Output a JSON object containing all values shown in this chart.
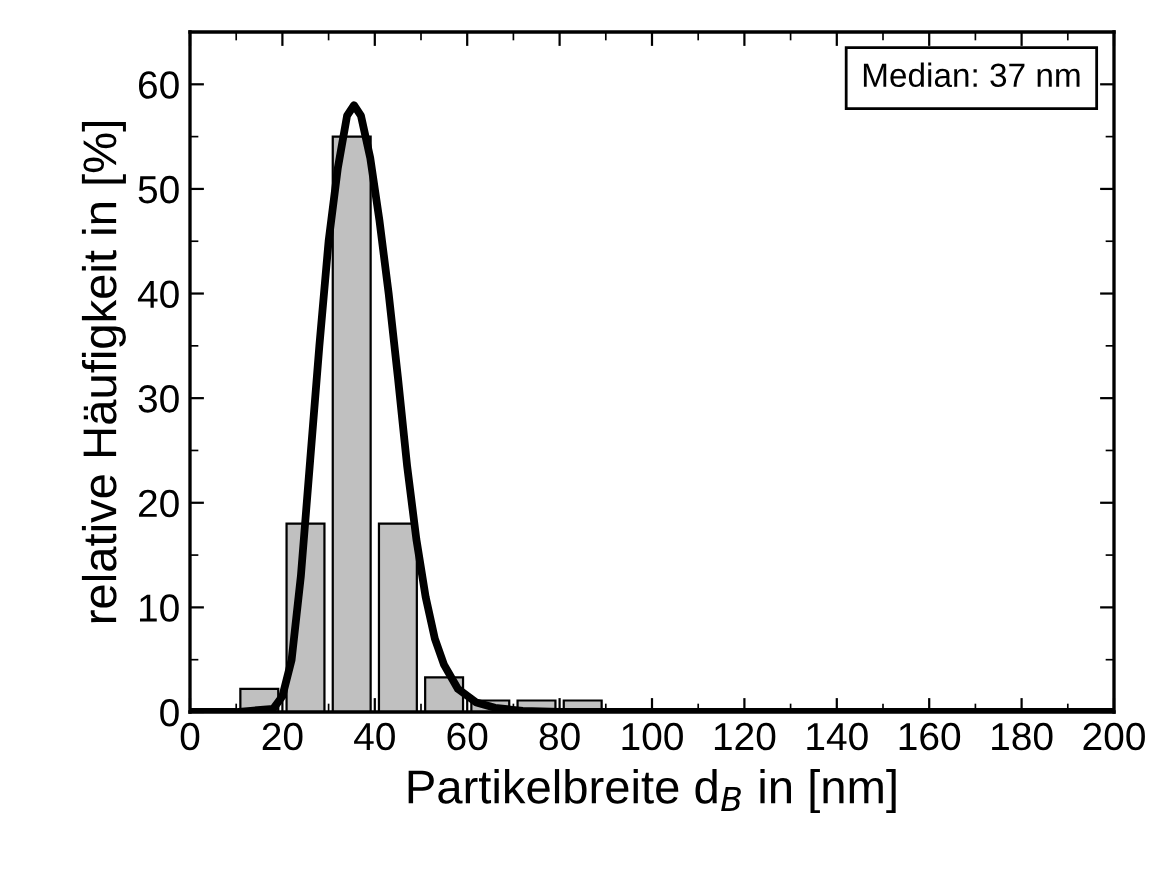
{
  "chart_data": {
    "type": "histogram",
    "xlabel": "Partikelbreite d$_{B}$ in [nm]",
    "ylabel": "relative Häufigkeit in [%]",
    "annotations": [
      "Median: 37 nm"
    ],
    "xlim": [
      0,
      200
    ],
    "ylim": [
      0,
      65
    ],
    "xticks": [
      0,
      20,
      40,
      60,
      80,
      100,
      120,
      140,
      160,
      180,
      200
    ],
    "yticks": [
      0,
      10,
      20,
      30,
      40,
      50,
      60
    ],
    "grid": false,
    "series": [
      {
        "color": "#c0c0c0",
        "bins": [
          10,
          20,
          30,
          40,
          50,
          60,
          70,
          80,
          90
        ],
        "values": [
          2.2,
          18,
          55,
          18,
          3.3,
          1.1,
          1.1,
          1.1
        ]
      },
      {
        "type": "line",
        "color": "#000000",
        "x": [
          0,
          10,
          18,
          20,
          22,
          24,
          26,
          28,
          30,
          32,
          34,
          35.5,
          37,
          39,
          41,
          43,
          45,
          47,
          49,
          51,
          53,
          55,
          58,
          62,
          66,
          72,
          80,
          200
        ],
        "values": [
          0,
          0,
          0.3,
          1.5,
          5,
          13,
          24,
          35,
          45,
          52,
          57,
          58,
          57,
          53,
          47,
          40,
          32,
          23.5,
          16.5,
          11,
          7,
          4.5,
          2.2,
          0.9,
          0.4,
          0.1,
          0,
          0
        ]
      }
    ]
  }
}
